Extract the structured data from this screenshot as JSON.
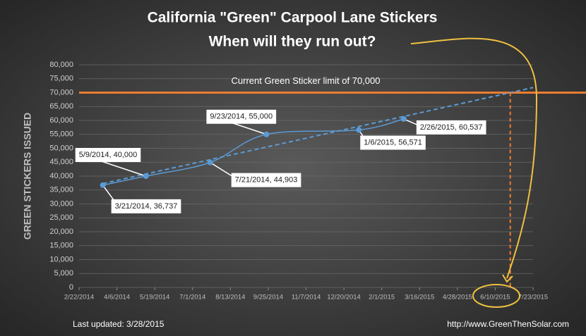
{
  "chart_data": {
    "type": "line",
    "title": "California \"Green\" Carpool Lane Stickers",
    "subtitle": "When will they run out?",
    "y_label": "GREEN STICKERS ISSUED",
    "annotation": "Current Green Sticker limit of 70,000",
    "limit": 70000,
    "footer_left": "Last updated:  3/28/2015",
    "footer_right": "http://www.GreenThenSolar.com",
    "x": [
      "3/21/2014",
      "5/9/2014",
      "7/21/2014",
      "9/23/2014",
      "1/6/2015",
      "2/26/2015"
    ],
    "series": [
      {
        "color": "#5b9bd5",
        "values": [
          36737,
          40000,
          44903,
          55000,
          56571,
          60537
        ],
        "value_labels": [
          "3/21/2014, 36,737",
          "5/9/2014, 40,000",
          "7/21/2014, 44,903",
          "9/23/2014, 55,000",
          "1/6/2015, 56,571",
          "2/26/2015, 60,537"
        ]
      }
    ],
    "xlim": [
      "2/22/2014",
      "7/23/2015"
    ],
    "xticks": [
      "2/22/2014",
      "4/6/2014",
      "5/19/2014",
      "7/1/2014",
      "8/13/2014",
      "9/25/2014",
      "11/7/2014",
      "12/20/2014",
      "2/1/2015",
      "3/16/2015",
      "4/28/2015",
      "6/10/2015",
      "7/23/2015"
    ],
    "ylim": [
      0,
      80000
    ],
    "yticks": [
      0,
      {
        "value": 5000,
        "label": "5,000"
      },
      {
        "value": 10000,
        "label": "10,000"
      },
      {
        "value": 15000,
        "label": "15,000"
      },
      {
        "value": 20000,
        "label": "20,000"
      },
      {
        "value": 25000,
        "label": "25,000"
      },
      {
        "value": 30000,
        "label": "30,000"
      },
      {
        "value": 35000,
        "label": "35,000"
      },
      {
        "value": 40000,
        "label": "40,000"
      },
      {
        "value": 45000,
        "label": "45,000"
      },
      {
        "value": 50000,
        "label": "50,000"
      },
      {
        "value": 55000,
        "label": "55,000"
      },
      {
        "value": 60000,
        "label": "60,000"
      },
      {
        "value": 65000,
        "label": "65,000"
      },
      {
        "value": 70000,
        "label": "70,000"
      },
      {
        "value": 75000,
        "label": "75,000"
      },
      {
        "value": 80000,
        "label": "80,000"
      }
    ],
    "grid": true,
    "limit_color": "#ed7d31",
    "trend": true
  }
}
